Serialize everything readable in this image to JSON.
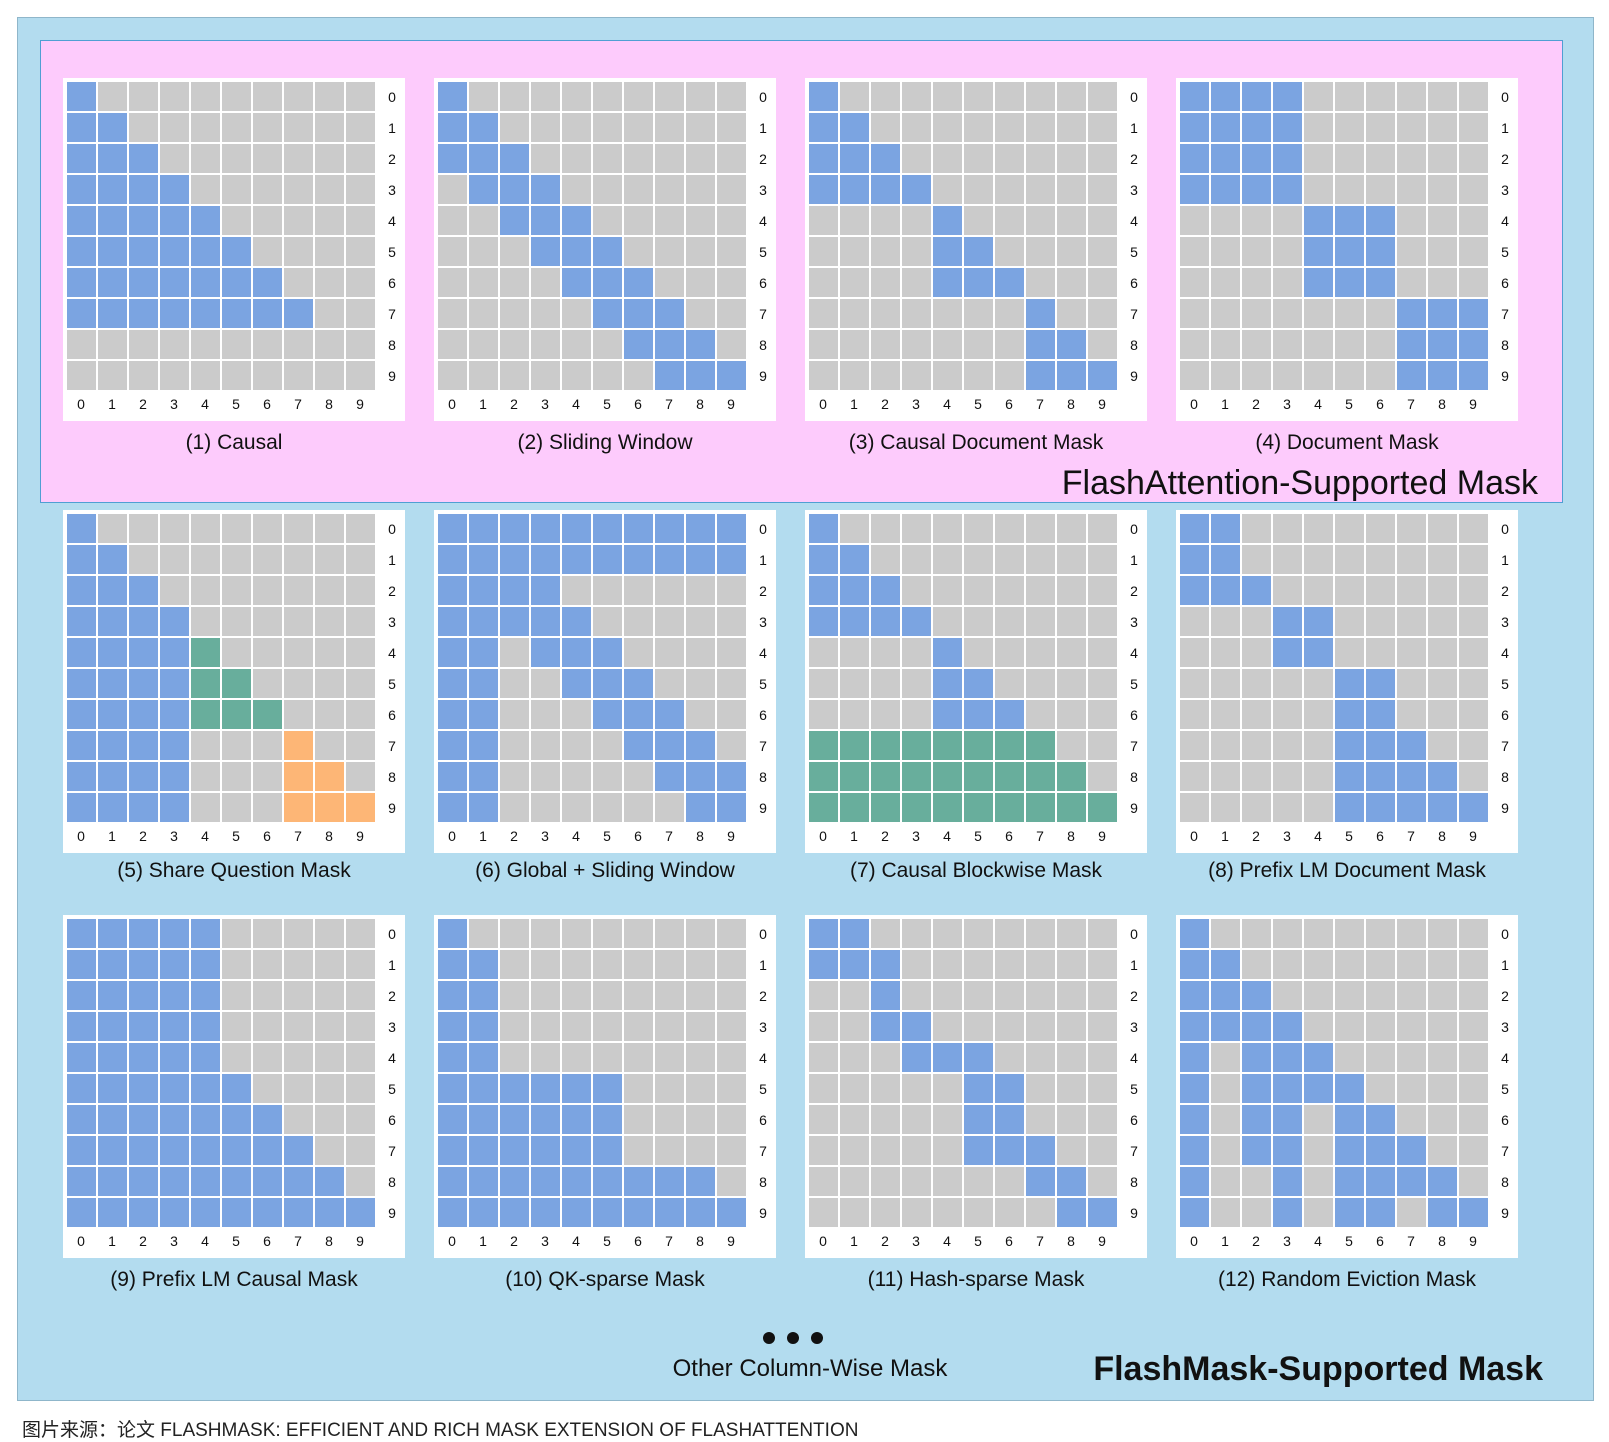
{
  "colors": {
    "blue": "#7ba4e1",
    "green": "#68ae9c",
    "orange": "#fdb676",
    "gray": "#cbcbcb",
    "fa_background": "#fdcbfc",
    "fm_background": "#b3dcef"
  },
  "axis_ticks": [
    "0",
    "1",
    "2",
    "3",
    "4",
    "5",
    "6",
    "7",
    "8",
    "9"
  ],
  "flashattention_title": "FlashAttention-Supported Mask",
  "flashmask_title": "FlashMask-Supported Mask",
  "other_label": "Other Column-Wise Mask",
  "source_note": "图片来源：论文 FLASHMASK: EFFICIENT AND RICH MASK EXTENSION OF FLASHATTENTION",
  "masks": [
    {
      "caption": "(1) Causal",
      "rows": [
        "B.........",
        "BB........",
        "BBB.......",
        "BBBB......",
        "BBBBB.....",
        "BBBBBB....",
        "BBBBBBB...",
        "BBBBBBBB..",
        "..........",
        ".........."
      ]
    },
    {
      "caption": "(2) Sliding Window",
      "rows": [
        "B.........",
        "BB........",
        "BBB.......",
        ".BBB......",
        "..BBB.....",
        "...BBB....",
        "....BBB...",
        ".....BBB..",
        "......BBB.",
        ".......BBB"
      ]
    },
    {
      "caption": "(3) Causal Document Mask",
      "rows": [
        "B.........",
        "BB........",
        "BBB.......",
        "BBBB......",
        "....B.....",
        "....BB....",
        "....BBB...",
        ".......B..",
        ".......BB.",
        ".......BBB"
      ]
    },
    {
      "caption": "(4) Document Mask",
      "rows": [
        "BBBB......",
        "BBBB......",
        "BBBB......",
        "BBBB......",
        "....BBB...",
        "....BBB...",
        "....BBB...",
        ".......BBB",
        ".......BBB",
        ".......BBB"
      ]
    },
    {
      "caption": "(5) Share Question Mask",
      "rows": [
        "B.........",
        "BB........",
        "BBB.......",
        "BBBB......",
        "BBBBG.....",
        "BBBBGG....",
        "BBBBGGG...",
        "BBBB...O..",
        "BBBB...OO.",
        "BBBB...OOO"
      ]
    },
    {
      "caption": "(6) Global + Sliding Window",
      "rows": [
        "BBBBBBBBBB",
        "BBBBBBBBBB",
        "BBBB......",
        "BBBBB.....",
        "BB.BBB....",
        "BB..BBB...",
        "BB...BBB..",
        "BB....BBB.",
        "BB.....BBB",
        "BB......BB"
      ]
    },
    {
      "caption": "(7) Causal  Blockwise Mask",
      "rows": [
        "B.........",
        "BB........",
        "BBB.......",
        "BBBB......",
        "....B.....",
        "....BB....",
        "....BBB...",
        "GGGGGGGG..",
        "GGGGGGGGG.",
        "GGGGGGGGGG"
      ]
    },
    {
      "caption": "(8) Prefix LM Document Mask",
      "rows": [
        "BB........",
        "BB........",
        "BBB.......",
        "...BB.....",
        "...BB.....",
        ".....BB...",
        ".....BB...",
        ".....BBB..",
        ".....BBBB.",
        ".....BBBBB"
      ]
    },
    {
      "caption": "(9) Prefix LM Causal Mask",
      "rows": [
        "BBBBB.....",
        "BBBBB.....",
        "BBBBB.....",
        "BBBBB.....",
        "BBBBB.....",
        "BBBBBB....",
        "BBBBBBB...",
        "BBBBBBBB..",
        "BBBBBBBBB.",
        "BBBBBBBBBB"
      ]
    },
    {
      "caption": "(10) QK-sparse Mask",
      "rows": [
        "B.........",
        "BB........",
        "BB........",
        "BB........",
        "BB........",
        "BBBBBB....",
        "BBBBBB....",
        "BBBBBB....",
        "BBBBBBBBB.",
        "BBBBBBBBBB"
      ]
    },
    {
      "caption": "(11) Hash-sparse Mask",
      "rows": [
        "BB........",
        "BBB.......",
        "..B.......",
        "..BB......",
        "...BBB....",
        ".....BB...",
        ".....BB...",
        ".....BBB..",
        ".......BB.",
        "........BB"
      ]
    },
    {
      "caption": "(12) Random Eviction Mask",
      "rows": [
        "B.........",
        "BB........",
        "BBB.......",
        "BBBB......",
        "B.BBB.....",
        "B.BBBB....",
        "B.BB.BB...",
        "B.BB.BBB..",
        "B..B.BBBB.",
        "B..B.BB.BB"
      ]
    }
  ]
}
